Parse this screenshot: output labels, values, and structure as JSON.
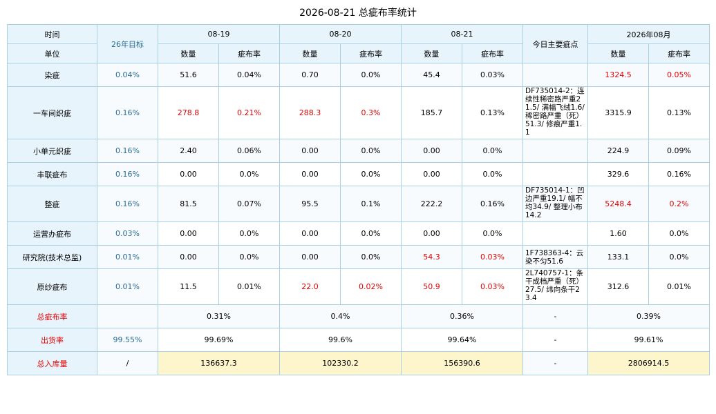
{
  "title": "2026-08-21 总疵布率统计",
  "header": {
    "time_label": "时间",
    "unit_label": "单位",
    "target_label": "26年目标",
    "dates": [
      "08-19",
      "08-20",
      "08-21"
    ],
    "main_defects_label": "今日主要疵点",
    "month_label": "2026年08月",
    "qty_label": "数量",
    "rate_label": "疵布率"
  },
  "rows": [
    {
      "name": "染疵",
      "target": "0.04%",
      "d1q": "51.6",
      "d1r": "0.04%",
      "d2q": "0.70",
      "d2r": "0.0%",
      "d3q": "45.4",
      "d3r": "0.03%",
      "note": "",
      "mq": "1324.5",
      "mr": "0.05%"
    },
    {
      "name": "一车间织疵",
      "target": "0.16%",
      "d1q": "278.8",
      "d1r": "0.21%",
      "d2q": "288.3",
      "d2r": "0.3%",
      "d3q": "185.7",
      "d3r": "0.13%",
      "note": "DF735014-2：连续性稀密路严重21.5/ 满幅飞绒1.6/ 稀密路严重（死）51.3/ 修痕严重1.1",
      "mq": "3315.9",
      "mr": "0.13%"
    },
    {
      "name": "小单元织疵",
      "target": "0.16%",
      "d1q": "2.40",
      "d1r": "0.06%",
      "d2q": "0.00",
      "d2r": "0.0%",
      "d3q": "0.00",
      "d3r": "0.0%",
      "note": "",
      "mq": "224.9",
      "mr": "0.09%"
    },
    {
      "name": "丰联疵布",
      "target": "0.16%",
      "d1q": "0.00",
      "d1r": "0.0%",
      "d2q": "0.00",
      "d2r": "0.0%",
      "d3q": "0.00",
      "d3r": "0.0%",
      "note": "",
      "mq": "329.6",
      "mr": "0.16%"
    },
    {
      "name": "整疵",
      "target": "0.16%",
      "d1q": "81.5",
      "d1r": "0.07%",
      "d2q": "95.5",
      "d2r": "0.1%",
      "d3q": "222.2",
      "d3r": "0.16%",
      "note": "DF735014-1：凹边严重19.1/ 幅不均34.9/ 整理小布14.2",
      "mq": "5248.4",
      "mr": "0.2%"
    },
    {
      "name": "运营办疵布",
      "target": "0.03%",
      "d1q": "0.00",
      "d1r": "0.0%",
      "d2q": "0.00",
      "d2r": "0.0%",
      "d3q": "0.00",
      "d3r": "0.0%",
      "note": "",
      "mq": "1.60",
      "mr": "0.0%"
    },
    {
      "name": "研究院(技术总监)",
      "target": "0.01%",
      "d1q": "0.00",
      "d1r": "0.0%",
      "d2q": "0.00",
      "d2r": "0.0%",
      "d3q": "54.3",
      "d3r": "0.03%",
      "note": "1F738363-4：云染不匀51.6",
      "mq": "133.1",
      "mr": "0.0%"
    },
    {
      "name": "原纱疵布",
      "target": "0.01%",
      "d1q": "11.5",
      "d1r": "0.01%",
      "d2q": "22.0",
      "d2r": "0.02%",
      "d3q": "50.9",
      "d3r": "0.03%",
      "note": "2L740757-1：条干成档严重（死）27.5/ 纬向条干23.4",
      "mq": "312.6",
      "mr": "0.01%"
    }
  ],
  "summary": {
    "total_rate": {
      "label": "总疵布率",
      "target": "",
      "d1": "0.31%",
      "d2": "0.4%",
      "d3": "0.36%",
      "note": "-",
      "month": "0.39%"
    },
    "ship_rate": {
      "label": "出货率",
      "target": "99.55%",
      "d1": "99.69%",
      "d2": "99.6%",
      "d3": "99.64%",
      "note": "-",
      "month": "99.61%"
    },
    "total_stock": {
      "label": "总入库量",
      "target": "/",
      "d1": "136637.3",
      "d2": "102330.2",
      "d3": "156390.6",
      "note": "-",
      "month": "2806914.5"
    }
  },
  "colors": {
    "highlight_red": "#e00000",
    "target_blue": "#2c6a92",
    "header_bg": "#e8f4fc",
    "total_stock_bg": "#fdf5cc",
    "border": "#a9cfe3"
  }
}
